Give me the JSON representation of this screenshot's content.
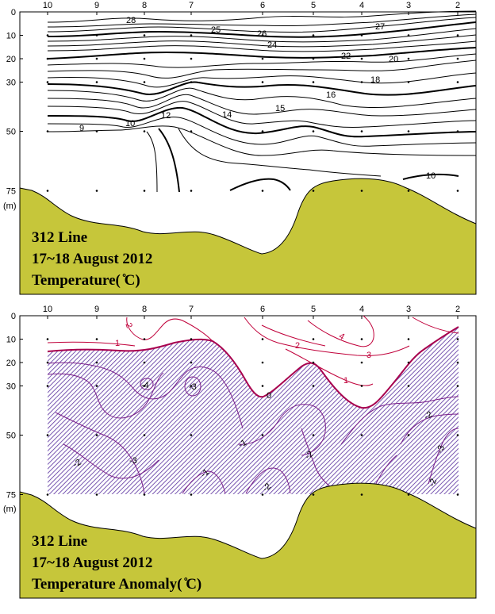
{
  "chart_data": [
    {
      "type": "contour",
      "caption_lines": [
        "312 Line",
        "17~18 August 2012",
        "Temperature( ̊C)"
      ],
      "station_labels": [
        "10",
        "9",
        "8",
        "7",
        "6",
        "5",
        "4",
        "3",
        "2"
      ],
      "depth_ticks": [
        0,
        10,
        20,
        30,
        50,
        75
      ],
      "depth_unit_label": "(m)",
      "contour_labels": [
        "28",
        "27",
        "26",
        "25",
        "24",
        "22",
        "20",
        "18",
        "16",
        "15",
        "14",
        "12",
        "10",
        "9",
        "10"
      ],
      "colors": {
        "land": "#c6c63a",
        "contour": "#000000"
      }
    },
    {
      "type": "contour",
      "caption_lines": [
        "312 Line",
        "17~18 August 2012",
        "Temperature Anomaly( ̊C)"
      ],
      "station_labels": [
        "10",
        "9",
        "8",
        "7",
        "6",
        "5",
        "4",
        "3",
        "2"
      ],
      "depth_ticks": [
        0,
        10,
        20,
        30,
        50,
        75
      ],
      "depth_unit_label": "(m)",
      "contour_labels": [
        "2",
        "1",
        "4",
        "2",
        "3",
        "1",
        "0",
        "-4",
        "-3",
        "-2",
        "-3",
        "-1",
        "-2",
        "-2",
        "-1",
        "-2",
        "-3",
        "-2"
      ],
      "colors": {
        "land": "#c6c63a",
        "positive_contour": "#c0003a",
        "negative_contour": "#7a1f8a",
        "zero_contour": "#a0005a",
        "negative_hatch": "#3a3ac0"
      }
    }
  ]
}
